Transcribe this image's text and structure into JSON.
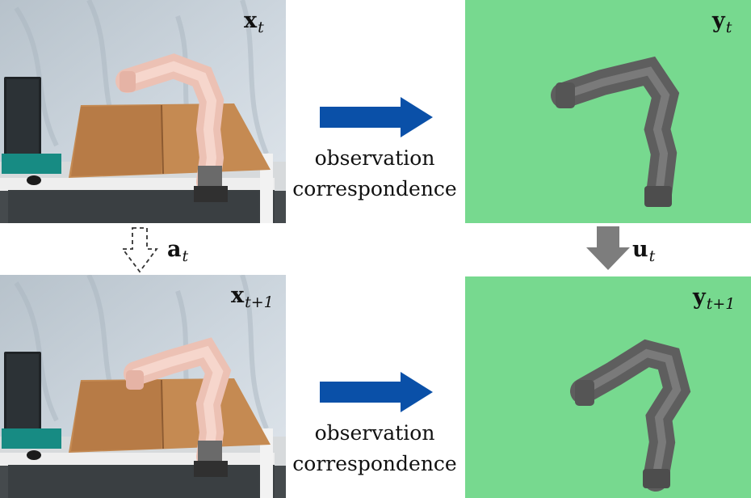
{
  "labels": {
    "x_t": {
      "symbol": "x",
      "sub": "t"
    },
    "y_t": {
      "symbol": "y",
      "sub": "t"
    },
    "x_t1": {
      "symbol": "x",
      "sub": "t+1"
    },
    "y_t1": {
      "symbol": "y",
      "sub": "t+1"
    },
    "a_t": {
      "symbol": "a",
      "sub": "t"
    },
    "u_t": {
      "symbol": "u",
      "sub": "t"
    }
  },
  "captions": {
    "top": {
      "line1": "observation",
      "line2": "correspondence"
    },
    "bottom": {
      "line1": "observation",
      "line2": "correspondence"
    }
  },
  "colors": {
    "sim_background": "#77d98f",
    "arrow_blue": "#0a50a8",
    "arrow_gray": "#7d7d7d",
    "sim_robot": "#5e5e5e",
    "real_robot": "#ecc1b4"
  },
  "icons": {
    "top_arrow": "right-arrow",
    "bottom_arrow": "right-arrow",
    "action_arrow": "dashed-down-arrow",
    "sim_action_arrow": "down-arrow"
  }
}
